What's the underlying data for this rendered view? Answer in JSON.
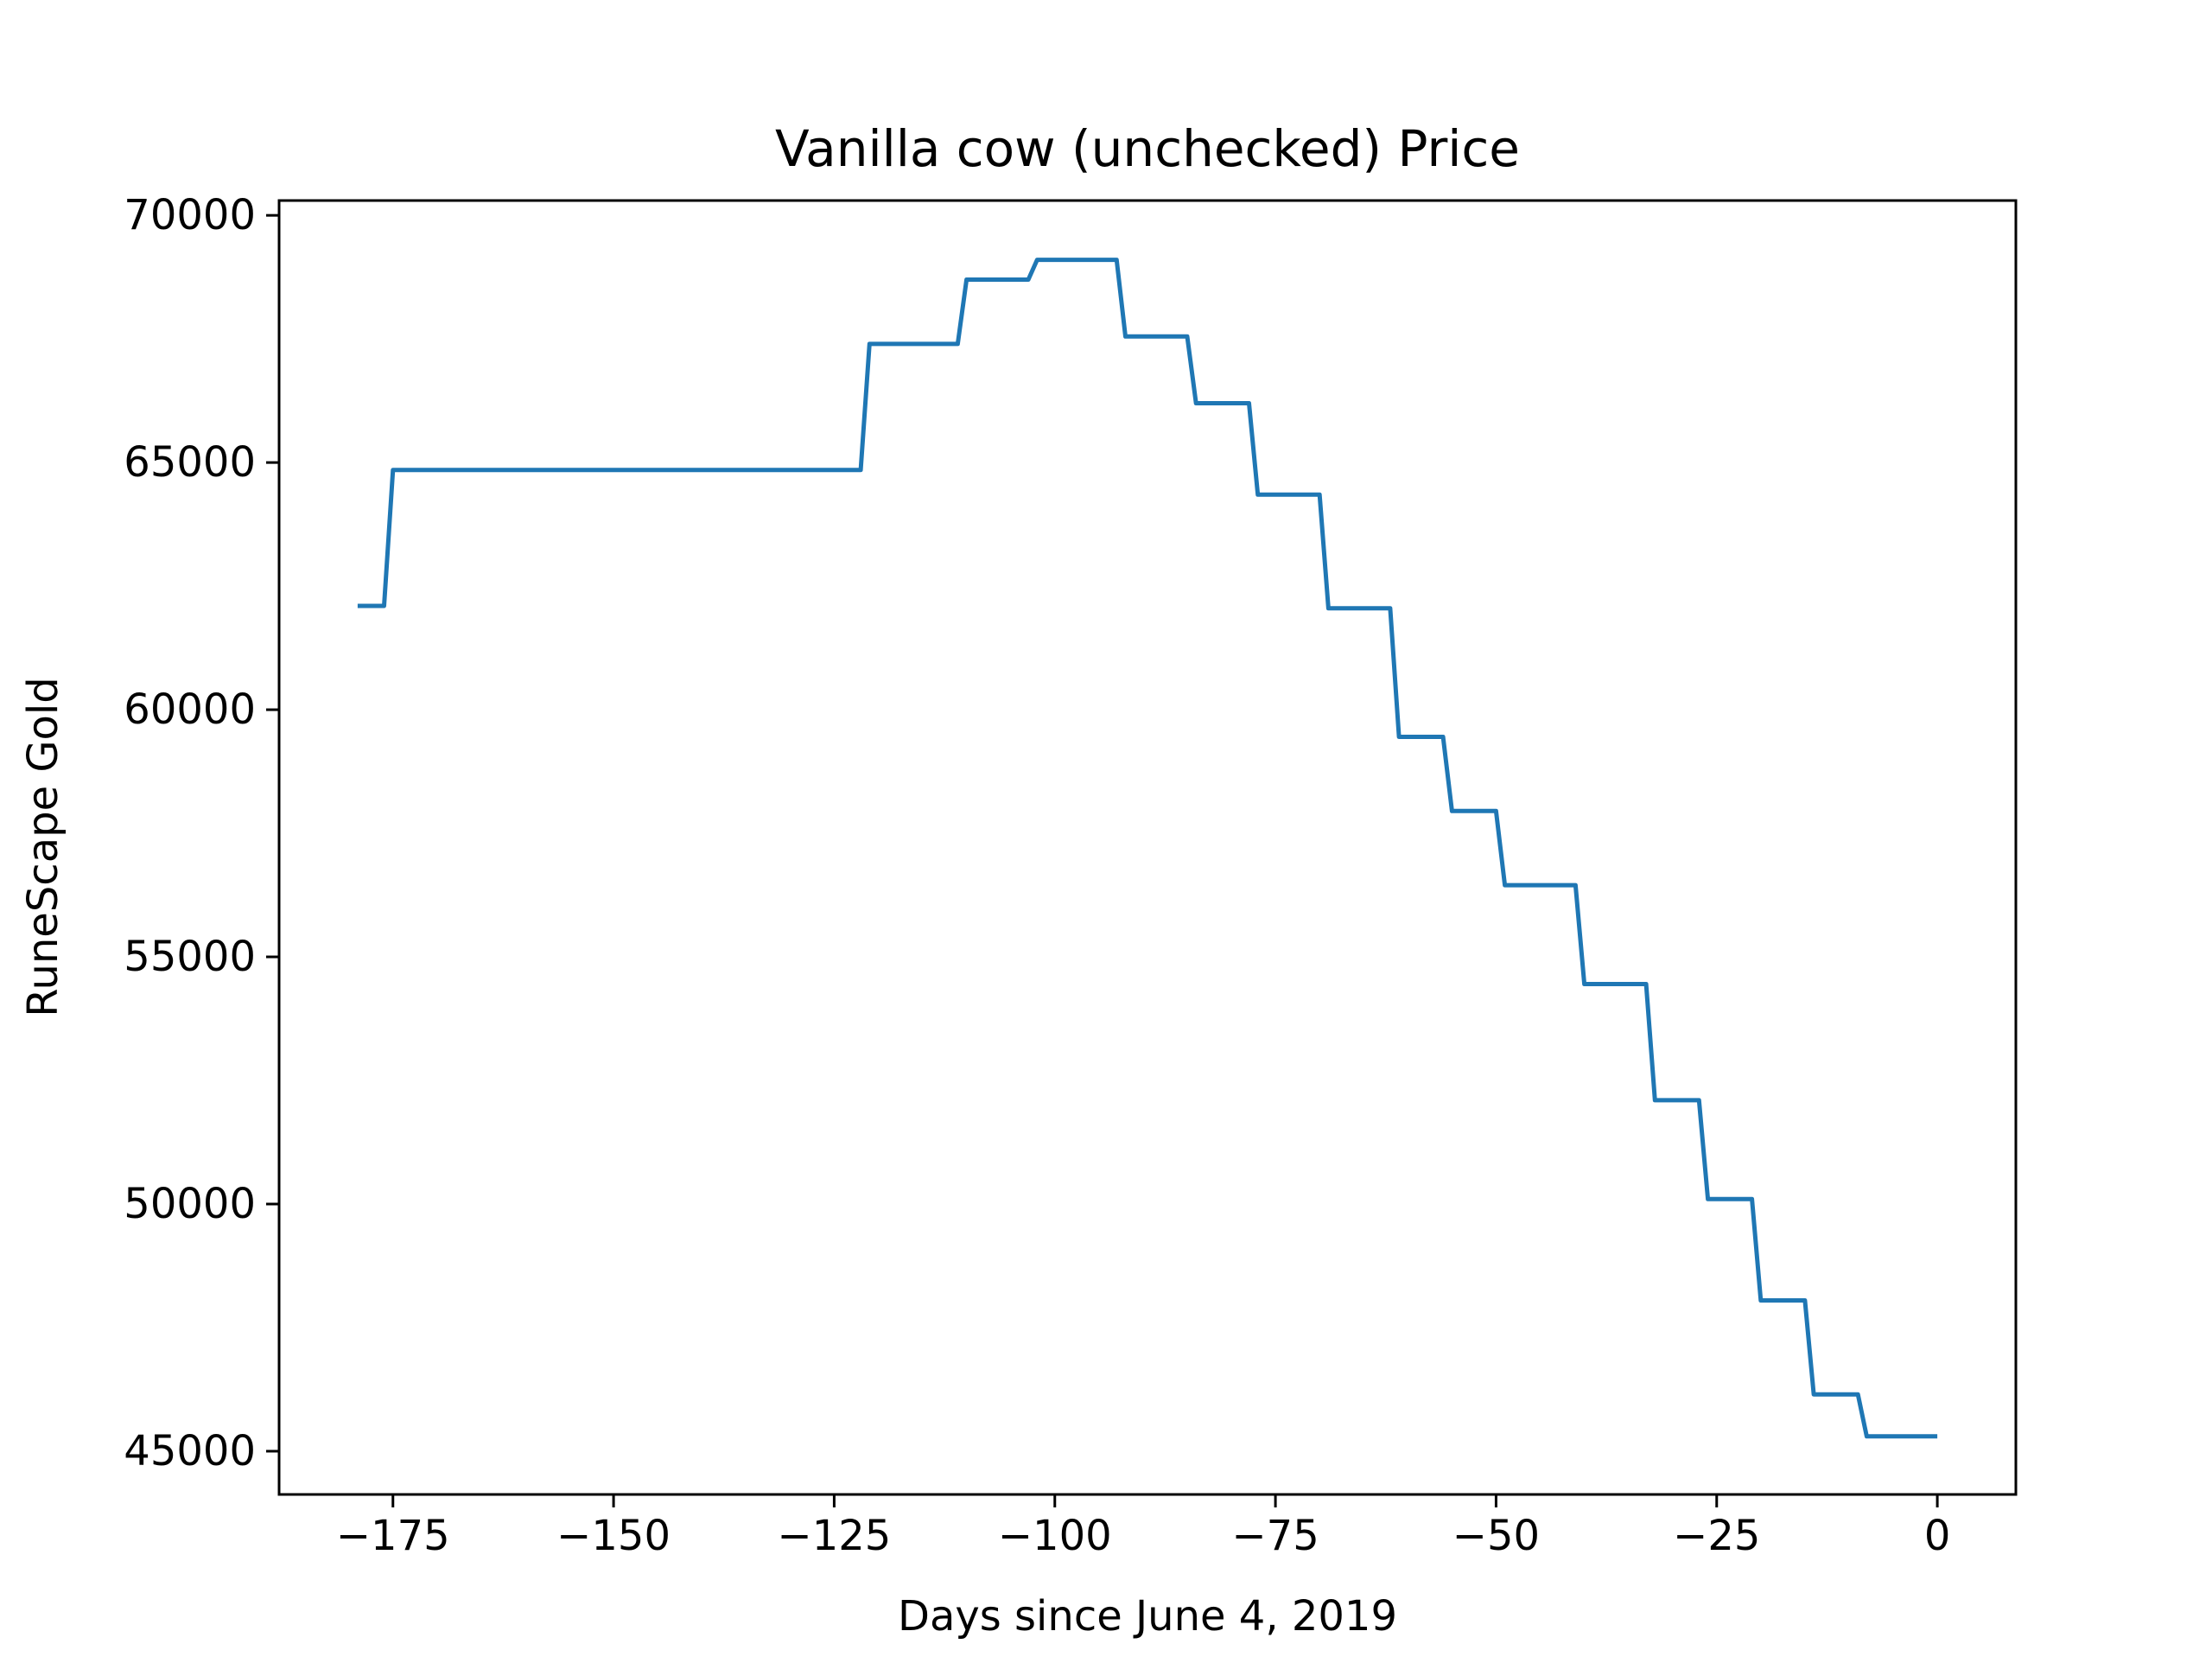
{
  "chart_data": {
    "type": "line",
    "title": "Vanilla cow (unchecked) Price",
    "xlabel": "Days since June 4, 2019",
    "ylabel": "RuneScape Gold",
    "xlim": [
      -187.9,
      8.9
    ],
    "ylim": [
      44125,
      70300
    ],
    "xticks": [
      -175,
      -150,
      -125,
      -100,
      -75,
      -50,
      -25,
      0
    ],
    "xtick_labels": [
      "−175",
      "−150",
      "−125",
      "−100",
      "−75",
      "−50",
      "−25",
      "0"
    ],
    "yticks": [
      45000,
      50000,
      55000,
      60000,
      65000,
      70000
    ],
    "ytick_labels": [
      "45000",
      "50000",
      "55000",
      "60000",
      "65000",
      "70000"
    ],
    "grid": false,
    "line_color": "#1f77b4",
    "series": [
      {
        "x": [
          -179,
          -176,
          -175,
          -122,
          -121,
          -111,
          -110,
          -103,
          -102,
          -93,
          -92,
          -85,
          -84,
          -78,
          -77,
          -70,
          -69,
          -62,
          -61,
          -56,
          -55,
          -50,
          -49,
          -41,
          -40,
          -33,
          -32,
          -27,
          -26,
          -21,
          -20,
          -15,
          -14,
          -9,
          -8,
          0
        ],
        "y": [
          62100,
          62100,
          64850,
          64850,
          67400,
          67400,
          68700,
          68700,
          69100,
          69100,
          67550,
          67550,
          66200,
          66200,
          64350,
          64350,
          62050,
          62050,
          59450,
          59450,
          57950,
          57950,
          56450,
          56450,
          54450,
          54450,
          52100,
          52100,
          50100,
          50100,
          48050,
          48050,
          46150,
          46150,
          45300,
          45300
        ]
      }
    ]
  }
}
